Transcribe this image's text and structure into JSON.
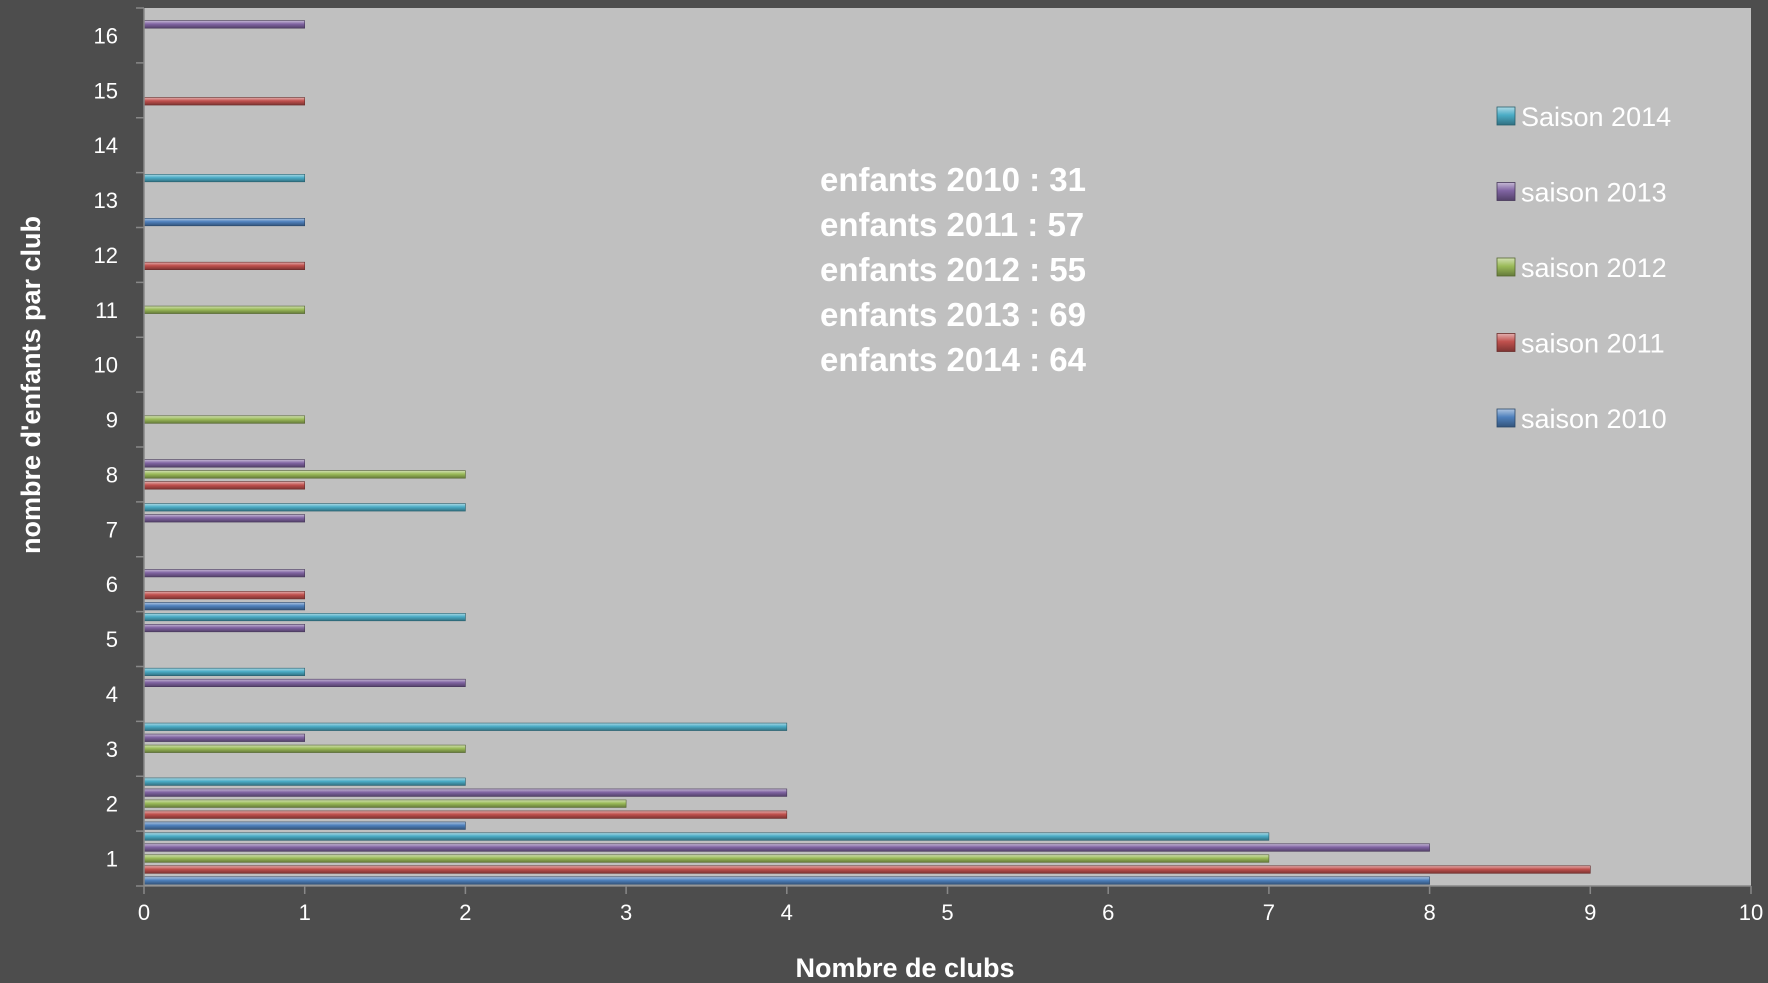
{
  "chart_data": {
    "type": "bar",
    "orientation": "horizontal",
    "xlabel": "Nombre de clubs",
    "ylabel": "nombre d'enfants par club",
    "xlim": [
      0,
      10
    ],
    "xticks": [
      "0",
      "1",
      "2",
      "3",
      "4",
      "5",
      "6",
      "7",
      "8",
      "9",
      "10"
    ],
    "categories": [
      "1",
      "2",
      "3",
      "4",
      "5",
      "6",
      "7",
      "8",
      "9",
      "10",
      "11",
      "12",
      "13",
      "14",
      "15",
      "16"
    ],
    "series": [
      {
        "name": "saison 2010",
        "color": "#4f81bd",
        "values": [
          8,
          2,
          null,
          null,
          null,
          1,
          null,
          null,
          null,
          null,
          null,
          null,
          1,
          null,
          null,
          null
        ]
      },
      {
        "name": "saison 2011",
        "color": "#c0504d",
        "values": [
          9,
          4,
          null,
          null,
          null,
          1,
          null,
          1,
          null,
          null,
          null,
          1,
          null,
          null,
          1,
          null
        ]
      },
      {
        "name": "saison 2012",
        "color": "#9bbb59",
        "values": [
          7,
          3,
          2,
          null,
          null,
          null,
          null,
          2,
          1,
          null,
          1,
          null,
          null,
          null,
          null,
          null
        ]
      },
      {
        "name": "saison 2013",
        "color": "#8064a2",
        "values": [
          8,
          4,
          1,
          2,
          1,
          1,
          1,
          1,
          null,
          null,
          null,
          null,
          null,
          null,
          null,
          1
        ]
      },
      {
        "name": "Saison 2014",
        "color": "#4bacc6",
        "values": [
          7,
          2,
          4,
          1,
          2,
          null,
          2,
          null,
          null,
          null,
          null,
          null,
          1,
          null,
          null,
          null
        ]
      }
    ],
    "legend_order": [
      "Saison 2014",
      "saison 2013",
      "saison 2012",
      "saison 2011",
      "saison 2010"
    ],
    "legend_position": "right",
    "annotations": [
      "enfants 2010 : 31",
      "enfants 2011 : 57",
      "enfants 2012 : 55",
      "enfants 2013 : 69",
      "enfants 2014 : 64"
    ],
    "colors": {
      "background": "#4d4d4d",
      "plot_area": "#c0c0c0",
      "text": "#ffffff"
    }
  }
}
